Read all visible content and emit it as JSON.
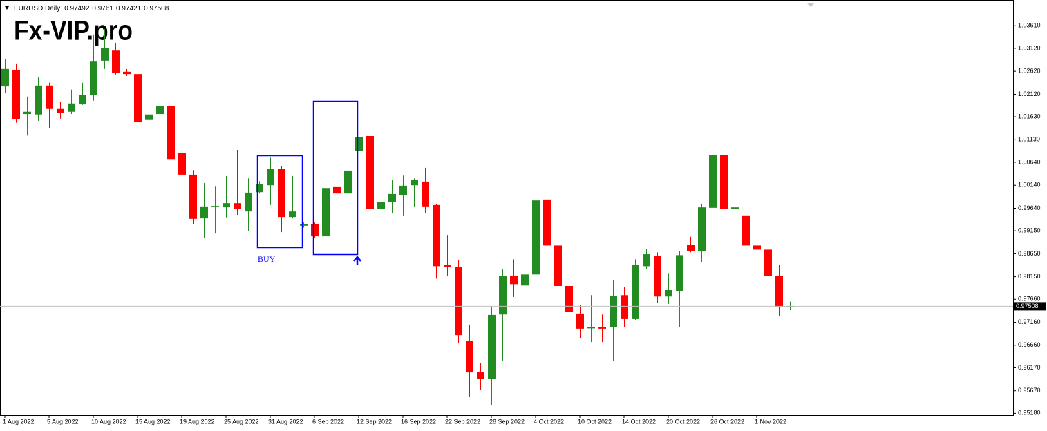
{
  "chart_data": {
    "type": "candlestick",
    "symbol": "EURUSD,Daily",
    "watermark": "Fx-VIP.pro",
    "annotation": "BUY",
    "up_color": "#228b22",
    "down_color": "#ff0000",
    "categories": [
      "1 Aug 2022",
      null,
      null,
      null,
      "5 Aug 2022",
      null,
      null,
      null,
      "10 Aug 2022",
      null,
      null,
      null,
      "15 Aug 2022",
      null,
      null,
      null,
      "19 Aug 2022",
      null,
      null,
      null,
      "25 Aug 2022",
      null,
      null,
      null,
      "31 Aug 2022",
      null,
      null,
      null,
      "6 Sep 2022",
      null,
      null,
      null,
      "12 Sep 2022",
      null,
      null,
      null,
      "16 Sep 2022",
      null,
      null,
      null,
      "22 Sep 2022",
      null,
      null,
      null,
      "28 Sep 2022",
      null,
      null,
      null,
      "4 Oct 2022",
      null,
      null,
      null,
      "10 Oct 2022",
      null,
      null,
      null,
      "14 Oct 2022",
      null,
      null,
      null,
      "20 Oct 2022",
      null,
      null,
      null,
      "26 Oct 2022",
      null,
      null,
      null,
      "1 Nov 2022",
      null,
      null,
      null
    ],
    "open": [
      1.0229,
      1.0265,
      1.0169,
      1.0168,
      1.0231,
      1.018,
      1.0174,
      1.019,
      1.021,
      1.0285,
      1.0307,
      1.0261,
      1.0256,
      1.0156,
      1.0169,
      1.0186,
      1.0085,
      1.0037,
      0.9942,
      0.9968,
      0.9966,
      0.9975,
      0.9957,
      0.9999,
      1.0014,
      1.005,
      0.9945,
      0.9926,
      0.9929,
      0.9903,
      1.001,
      0.9996,
      1.0089,
      1.0121,
      0.9963,
      0.9977,
      0.9993,
      1.0014,
      1.0022,
      0.9971,
      0.984,
      0.9837,
      0.9676,
      0.9608,
      0.9593,
      0.9733,
      0.9816,
      0.9796,
      0.982,
      0.9983,
      0.9883,
      0.9795,
      0.9735,
      0.9703,
      0.9706,
      0.9705,
      0.9775,
      0.9723,
      0.9838,
      0.9861,
      0.9772,
      0.9784,
      0.9885,
      0.987,
      0.9965,
      1.0079,
      0.9963,
      0.9947,
      0.9883,
      0.9874,
      0.9816,
      0.97492
    ],
    "high": [
      1.0289,
      1.0279,
      1.0207,
      1.0249,
      1.0237,
      1.0195,
      1.0222,
      1.0237,
      1.0342,
      1.0354,
      1.0324,
      1.0267,
      1.0259,
      1.0195,
      1.0199,
      1.0189,
      1.0097,
      1.0047,
      1.0019,
      1.0011,
      1.0034,
      1.0091,
      1.0029,
      1.0023,
      1.0074,
      1.0056,
      1.0034,
      0.9933,
      0.9933,
      1.0019,
      1.0029,
      1.0113,
      1.0122,
      1.0187,
      1.0029,
      1.0026,
      1.0035,
      1.0029,
      1.0052,
      0.9974,
      0.9906,
      0.9852,
      0.9711,
      0.9628,
      0.9751,
      0.9831,
      0.9853,
      0.9843,
      0.9998,
      0.9995,
      0.9906,
      0.9819,
      0.9753,
      0.9775,
      0.9733,
      0.9808,
      0.9792,
      0.9853,
      0.9876,
      0.9868,
      0.9823,
      0.987,
      0.9902,
      0.9974,
      1.0092,
      1.0097,
      0.9998,
      0.9966,
      0.9956,
      0.9977,
      0.9841,
      0.9761
    ],
    "low": [
      1.0214,
      1.015,
      1.0122,
      1.0154,
      1.0139,
      1.0159,
      1.0169,
      1.0189,
      1.0198,
      1.0267,
      1.0255,
      1.0252,
      1.0147,
      1.0124,
      1.0144,
      1.0068,
      1.0032,
      0.993,
      0.99,
      0.9909,
      0.9944,
      0.9948,
      0.9915,
      0.9996,
      0.9971,
      0.9912,
      0.9942,
      0.9922,
      0.99,
      0.9876,
      0.993,
      0.9993,
      1.0086,
      0.9962,
      0.9957,
      0.9954,
      0.9947,
      0.9966,
      0.9953,
      0.9811,
      0.9816,
      0.967,
      0.9553,
      0.9568,
      0.9535,
      0.9632,
      0.9771,
      0.9751,
      0.9813,
      0.9835,
      0.9786,
      0.9726,
      0.9681,
      0.9673,
      0.9673,
      0.9632,
      0.9706,
      0.9721,
      0.9831,
      0.9759,
      0.9756,
      0.9706,
      0.9868,
      0.9846,
      0.9942,
      0.9959,
      0.9951,
      0.9868,
      0.9855,
      0.9813,
      0.9729,
      0.97421
    ],
    "close": [
      1.0267,
      1.0157,
      1.0174,
      1.0231,
      1.018,
      1.0172,
      1.0192,
      1.021,
      1.0283,
      1.0312,
      1.0259,
      1.0256,
      1.0151,
      1.0168,
      1.0186,
      1.0071,
      1.0037,
      0.9941,
      0.9968,
      0.9969,
      0.9975,
      0.9963,
      0.9998,
      1.0016,
      1.0049,
      0.9945,
      0.9957,
      0.993,
      0.9903,
      1.0008,
      0.9996,
      1.0046,
      1.0119,
      0.9963,
      0.9978,
      0.9995,
      1.0013,
      1.0025,
      0.9968,
      0.9838,
      0.9837,
      0.9688,
      0.9607,
      0.9593,
      0.9732,
      0.9817,
      0.9799,
      0.982,
      0.9981,
      0.9883,
      0.9795,
      0.9738,
      0.9702,
      0.9705,
      0.9702,
      0.9774,
      0.9723,
      0.9841,
      0.9864,
      0.9772,
      0.9786,
      0.9862,
      0.9871,
      0.9966,
      1.008,
      0.9962,
      0.9966,
      0.9883,
      0.9874,
      0.9816,
      0.975,
      0.97508
    ],
    "ylim": [
      0.9514,
      1.0417
    ],
    "yticks": [
      {
        "value": 1.0361,
        "label": "1.03610"
      },
      {
        "value": 1.0312,
        "label": "1.03120"
      },
      {
        "value": 1.0262,
        "label": "1.02620"
      },
      {
        "value": 1.0212,
        "label": "1.02120"
      },
      {
        "value": 1.0163,
        "label": "1.01630"
      },
      {
        "value": 1.0113,
        "label": "1.01130"
      },
      {
        "value": 1.0064,
        "label": "1.00640"
      },
      {
        "value": 1.0014,
        "label": "1.00140"
      },
      {
        "value": 0.9964,
        "label": "0.99640"
      },
      {
        "value": 0.9915,
        "label": "0.99150"
      },
      {
        "value": 0.9865,
        "label": "0.98650"
      },
      {
        "value": 0.9815,
        "label": "0.98150"
      },
      {
        "value": 0.9766,
        "label": "0.97660"
      },
      {
        "value": 0.9716,
        "label": "0.97160"
      },
      {
        "value": 0.9666,
        "label": "0.96660"
      },
      {
        "value": 0.9617,
        "label": "0.96170"
      },
      {
        "value": 0.9567,
        "label": "0.95670"
      },
      {
        "value": 0.9518,
        "label": "0.95180"
      }
    ]
  }
}
